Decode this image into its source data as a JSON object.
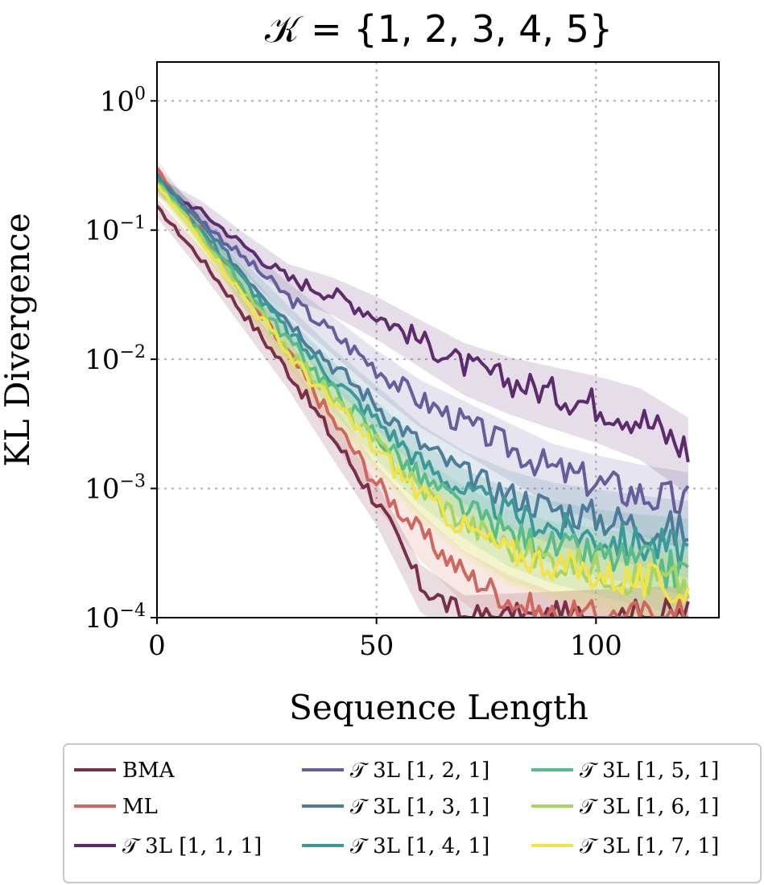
{
  "chart_data": {
    "type": "line",
    "title": "𝒦 = {1, 2, 3, 4, 5}",
    "xlabel": "Sequence Length",
    "ylabel": "KL Divergence",
    "xlim": [
      0,
      128
    ],
    "ylim": [
      0.0001,
      2
    ],
    "yscale": "log",
    "xticks": [
      0,
      50,
      100
    ],
    "xtick_labels": [
      "0",
      "50",
      "100"
    ],
    "yticks": [
      1,
      0.1,
      0.01,
      0.001,
      0.0001
    ],
    "ytick_labels": [
      {
        "base": "10",
        "exp": "0"
      },
      {
        "base": "10",
        "exp": "−1"
      },
      {
        "base": "10",
        "exp": "−2"
      },
      {
        "base": "10",
        "exp": "−3"
      },
      {
        "base": "10",
        "exp": "−4"
      }
    ],
    "grid": true,
    "legend_position": "below",
    "x": [
      0,
      10,
      20,
      30,
      40,
      50,
      60,
      70,
      80,
      90,
      100,
      110,
      121
    ],
    "series": [
      {
        "name": "BMA",
        "color": "#7a2e48",
        "values": [
          0.15,
          0.06,
          0.022,
          0.008,
          0.0025,
          0.0008,
          0.00018,
          0.0001,
          0.0001,
          0.0001,
          0.0001,
          0.0001,
          0.0001
        ]
      },
      {
        "name": "ML",
        "color": "#d0675e",
        "values": [
          0.3,
          0.1,
          0.032,
          0.011,
          0.0034,
          0.0011,
          0.00045,
          0.00022,
          0.00014,
          0.0001,
          0.0001,
          0.0001,
          0.0001
        ]
      },
      {
        "name": "𝒯 3L [1, 1, 1]",
        "color": "#5e2a6e",
        "values": [
          0.22,
          0.14,
          0.075,
          0.042,
          0.032,
          0.022,
          0.014,
          0.009,
          0.0068,
          0.0055,
          0.0045,
          0.0035,
          0.002
        ]
      },
      {
        "name": "𝒯 3L [1, 2, 1]",
        "color": "#655e9c",
        "values": [
          0.24,
          0.12,
          0.06,
          0.03,
          0.016,
          0.0085,
          0.0048,
          0.0032,
          0.0021,
          0.0014,
          0.0011,
          0.0009,
          0.00075
        ]
      },
      {
        "name": "𝒯 3L [1, 3, 1]",
        "color": "#4d7b9a",
        "values": [
          0.27,
          0.11,
          0.045,
          0.02,
          0.009,
          0.0045,
          0.0022,
          0.0013,
          0.0009,
          0.0007,
          0.0006,
          0.00052,
          0.00045
        ]
      },
      {
        "name": "𝒯 3L [1, 4, 1]",
        "color": "#3b9a98",
        "values": [
          0.25,
          0.1,
          0.04,
          0.016,
          0.0072,
          0.0034,
          0.0016,
          0.00095,
          0.00065,
          0.0005,
          0.00042,
          0.00037,
          0.00033
        ]
      },
      {
        "name": "𝒯 3L [1, 5, 1]",
        "color": "#58bc8a",
        "values": [
          0.24,
          0.095,
          0.035,
          0.014,
          0.0058,
          0.0026,
          0.0012,
          0.0007,
          0.00045,
          0.00035,
          0.0003,
          0.00026,
          0.00022
        ]
      },
      {
        "name": "𝒯 3L [1, 6, 1]",
        "color": "#a7d564",
        "values": [
          0.23,
          0.09,
          0.032,
          0.012,
          0.005,
          0.0022,
          0.001,
          0.00055,
          0.00035,
          0.00028,
          0.00024,
          0.0002,
          0.00018
        ]
      },
      {
        "name": "𝒯 3L [1, 7, 1]",
        "color": "#f1e34a",
        "values": [
          0.22,
          0.085,
          0.03,
          0.011,
          0.0045,
          0.002,
          0.0009,
          0.0005,
          0.00032,
          0.00026,
          0.00022,
          0.00019,
          0.00016
        ]
      }
    ]
  }
}
